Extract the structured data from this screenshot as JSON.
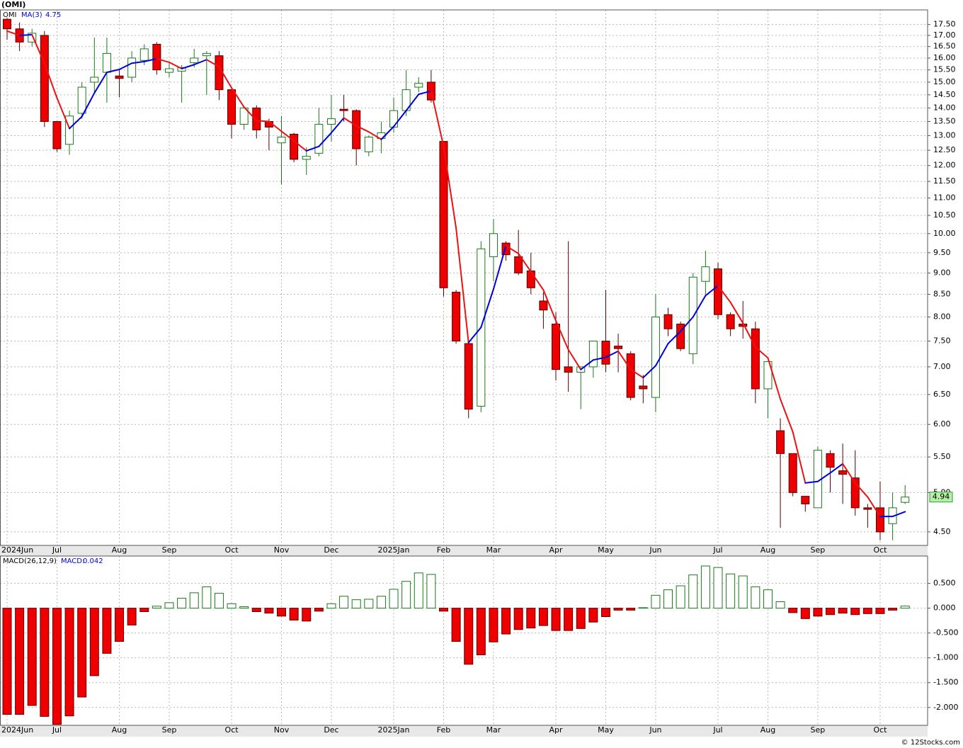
{
  "chart_data": [
    {
      "type": "candlestick",
      "title": "(OMI)",
      "symbol": "OMI",
      "categories": [
        "2024Jun",
        null,
        null,
        null,
        "Jul",
        null,
        null,
        null,
        null,
        "Aug",
        null,
        null,
        null,
        "Sep",
        null,
        null,
        null,
        null,
        "Oct",
        null,
        null,
        null,
        "Nov",
        null,
        null,
        null,
        "Dec",
        null,
        null,
        null,
        null,
        "2025Jan",
        null,
        null,
        null,
        "Feb",
        null,
        null,
        null,
        "Mar",
        null,
        null,
        null,
        null,
        "Apr",
        null,
        null,
        null,
        "May",
        null,
        null,
        null,
        "Jun",
        null,
        null,
        null,
        null,
        "Jul",
        null,
        null,
        null,
        "Aug",
        null,
        null,
        null,
        "Sep",
        null,
        null,
        null,
        null,
        "Oct",
        null,
        null
      ],
      "open": [
        17.75,
        17.3,
        16.7,
        17.0,
        13.5,
        12.7,
        13.8,
        15.0,
        15.4,
        15.25,
        15.2,
        15.9,
        16.6,
        15.4,
        15.45,
        15.8,
        16.1,
        16.1,
        14.7,
        13.4,
        14.0,
        13.5,
        12.75,
        13.05,
        12.2,
        12.4,
        13.4,
        13.95,
        13.9,
        12.45,
        12.9,
        13.3,
        13.9,
        14.8,
        15.0,
        12.8,
        8.55,
        7.45,
        6.3,
        9.4,
        9.75,
        9.4,
        9.05,
        8.35,
        7.85,
        7.0,
        6.9,
        7.0,
        7.5,
        7.4,
        7.25,
        6.65,
        6.45,
        8.05,
        7.85,
        7.25,
        8.8,
        9.1,
        8.05,
        7.85,
        7.75,
        6.6,
        5.9,
        5.55,
        4.95,
        4.8,
        5.55,
        5.3,
        5.2,
        4.8,
        4.8,
        4.6,
        4.87
      ],
      "high": [
        17.8,
        17.6,
        17.3,
        17.2,
        13.5,
        13.9,
        15.0,
        16.9,
        16.9,
        15.5,
        16.3,
        16.6,
        16.7,
        15.8,
        15.7,
        16.4,
        16.3,
        16.3,
        14.7,
        14.0,
        14.1,
        13.6,
        13.7,
        13.1,
        12.6,
        14.0,
        14.5,
        14.5,
        13.95,
        13.0,
        13.5,
        14.4,
        15.5,
        15.2,
        15.5,
        12.8,
        8.6,
        7.5,
        9.8,
        10.4,
        9.8,
        10.1,
        9.5,
        8.55,
        8.1,
        9.8,
        7.0,
        7.5,
        8.6,
        7.65,
        7.3,
        6.85,
        8.5,
        8.2,
        7.9,
        9.0,
        9.55,
        9.25,
        8.1,
        8.35,
        7.9,
        7.1,
        6.1,
        5.55,
        4.95,
        5.65,
        5.6,
        5.7,
        5.6,
        4.85,
        5.15,
        5.0,
        5.1
      ],
      "low": [
        16.8,
        16.3,
        16.5,
        13.3,
        12.45,
        12.35,
        13.6,
        14.6,
        14.2,
        14.4,
        15.0,
        15.7,
        15.3,
        15.2,
        14.2,
        15.6,
        14.5,
        14.3,
        12.9,
        13.2,
        12.9,
        12.5,
        11.4,
        12.1,
        11.7,
        12.3,
        12.8,
        13.5,
        12.0,
        12.3,
        12.4,
        13.1,
        13.7,
        14.6,
        14.2,
        8.45,
        7.45,
        6.1,
        6.2,
        8.8,
        9.3,
        8.95,
        8.5,
        7.75,
        6.75,
        6.55,
        6.25,
        6.8,
        6.9,
        6.9,
        6.4,
        6.35,
        6.2,
        7.6,
        7.3,
        7.05,
        8.5,
        7.95,
        7.6,
        7.55,
        6.35,
        6.1,
        4.55,
        4.95,
        4.75,
        4.8,
        5.0,
        4.85,
        4.7,
        4.55,
        4.4,
        4.4,
        4.85
      ],
      "close": [
        17.3,
        16.7,
        17.1,
        13.5,
        12.55,
        13.7,
        14.8,
        15.2,
        16.2,
        15.15,
        16.0,
        16.4,
        15.5,
        15.55,
        15.6,
        16.0,
        16.2,
        14.7,
        13.4,
        14.0,
        13.2,
        13.3,
        12.95,
        12.2,
        12.3,
        13.4,
        13.6,
        13.9,
        12.55,
        12.95,
        13.1,
        13.9,
        14.7,
        14.95,
        14.3,
        8.65,
        7.5,
        6.25,
        9.6,
        10.0,
        9.45,
        9.0,
        8.65,
        8.15,
        6.95,
        6.9,
        7.0,
        7.5,
        7.05,
        7.35,
        6.45,
        6.6,
        8.0,
        7.75,
        7.35,
        8.9,
        9.15,
        8.05,
        7.75,
        7.8,
        6.6,
        7.1,
        5.55,
        5.0,
        4.85,
        5.6,
        5.35,
        5.25,
        4.8,
        4.78,
        4.5,
        4.8,
        4.94
      ],
      "up_color": "#1a7a1a",
      "down_color": "#ee0000",
      "series": [
        {
          "name": "MA(3)",
          "up_color": "#0000dd",
          "down_color": "#ee1111",
          "values": [
            17.2,
            17.0,
            17.03,
            15.77,
            14.38,
            13.25,
            13.68,
            14.57,
            15.4,
            15.52,
            15.78,
            15.85,
            15.97,
            15.82,
            15.55,
            15.72,
            15.93,
            15.63,
            14.77,
            14.03,
            13.53,
            13.5,
            13.15,
            12.82,
            12.48,
            12.63,
            13.1,
            13.63,
            13.35,
            13.13,
            12.87,
            13.32,
            13.9,
            14.52,
            14.65,
            12.63,
            10.15,
            7.47,
            7.78,
            8.62,
            9.68,
            9.48,
            9.03,
            8.6,
            7.92,
            7.33,
            6.95,
            7.13,
            7.18,
            7.3,
            6.95,
            6.8,
            7.02,
            7.45,
            7.7,
            8.0,
            8.47,
            8.7,
            8.32,
            7.87,
            7.38,
            7.17,
            6.42,
            5.88,
            5.13,
            5.15,
            5.27,
            5.4,
            5.13,
            4.94,
            4.69,
            4.69,
            4.75
          ]
        }
      ],
      "ylim": [
        4.34,
        18.2
      ],
      "log_scale": true,
      "grid": true,
      "yticks": [
        {
          "value": 4.5,
          "label": "4.50"
        },
        {
          "value": 5,
          "label": "5.00"
        },
        {
          "value": 5.5,
          "label": "5.50"
        },
        {
          "value": 6,
          "label": "6.00"
        },
        {
          "value": 6.5,
          "label": "6.50"
        },
        {
          "value": 7,
          "label": "7.00"
        },
        {
          "value": 7.5,
          "label": "7.50"
        },
        {
          "value": 8,
          "label": "8.00"
        },
        {
          "value": 8.5,
          "label": "8.50"
        },
        {
          "value": 9,
          "label": "9.00"
        },
        {
          "value": 9.5,
          "label": "9.50"
        },
        {
          "value": 10,
          "label": "10.00"
        },
        {
          "value": 10.5,
          "label": "10.50"
        },
        {
          "value": 11,
          "label": "11.00"
        },
        {
          "value": 11.5,
          "label": "11.50"
        },
        {
          "value": 12,
          "label": "12.00"
        },
        {
          "value": 12.5,
          "label": "12.50"
        },
        {
          "value": 13,
          "label": "13.00"
        },
        {
          "value": 13.5,
          "label": "13.50"
        },
        {
          "value": 14,
          "label": "14.00"
        },
        {
          "value": 14.5,
          "label": "14.50"
        },
        {
          "value": 15,
          "label": "15.00"
        },
        {
          "value": 15.5,
          "label": "15.50"
        },
        {
          "value": 16,
          "label": "16.00"
        },
        {
          "value": 16.5,
          "label": "16.50"
        },
        {
          "value": 17,
          "label": "17.00"
        },
        {
          "value": 17.5,
          "label": "17.50"
        }
      ]
    },
    {
      "type": "bar",
      "name": "MACD(26,12,9)",
      "value_name": "MACD:",
      "values": [
        -2.14,
        -2.14,
        -1.96,
        -2.18,
        -2.34,
        -2.17,
        -1.79,
        -1.36,
        -0.91,
        -0.67,
        -0.34,
        -0.07,
        0.04,
        0.11,
        0.2,
        0.31,
        0.43,
        0.3,
        0.09,
        0.03,
        -0.07,
        -0.1,
        -0.16,
        -0.24,
        -0.26,
        -0.06,
        0.09,
        0.24,
        0.17,
        0.18,
        0.24,
        0.38,
        0.54,
        0.71,
        0.68,
        -0.06,
        -0.67,
        -1.13,
        -0.94,
        -0.68,
        -0.52,
        -0.43,
        -0.4,
        -0.35,
        -0.45,
        -0.45,
        -0.41,
        -0.28,
        -0.17,
        -0.04,
        -0.04,
        0.01,
        0.26,
        0.37,
        0.45,
        0.67,
        0.85,
        0.82,
        0.69,
        0.65,
        0.43,
        0.37,
        0.13,
        -0.09,
        -0.21,
        -0.16,
        -0.13,
        -0.1,
        -0.13,
        -0.11,
        -0.11,
        -0.04,
        0.042
      ],
      "up_color": "#1a7a1a",
      "down_color": "#ee0000",
      "ylim": [
        -2.36,
        1.05
      ],
      "grid": true,
      "yticks": [
        {
          "value": 0.5,
          "label": "0.500"
        },
        {
          "value": 0,
          "label": "0.000"
        },
        {
          "value": -0.5,
          "label": "-0.500"
        },
        {
          "value": -1,
          "label": "-1.000"
        },
        {
          "value": -1.5,
          "label": "-1.500"
        },
        {
          "value": -2,
          "label": "-2.000"
        }
      ]
    }
  ],
  "footer": "© 12Stocks.com"
}
